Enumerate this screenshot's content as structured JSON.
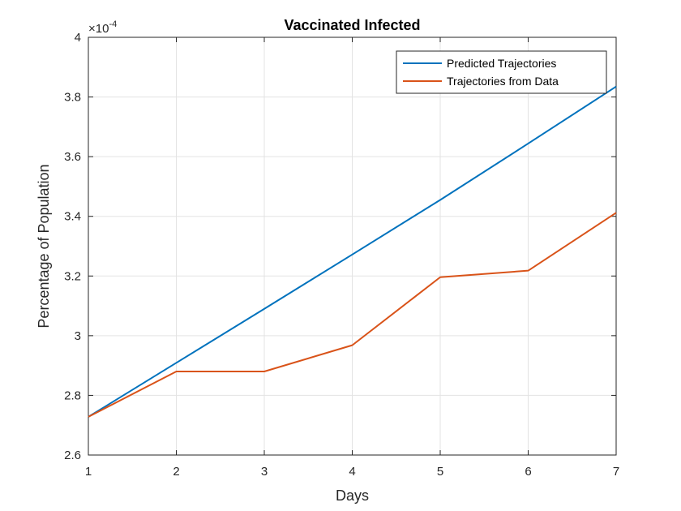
{
  "chart_data": {
    "type": "line",
    "title": "Vaccinated Infected",
    "xlabel": "Days",
    "ylabel": "Percentage of Population",
    "y_exponent_label": "×10",
    "y_exponent": "-4",
    "x": [
      1,
      2,
      3,
      4,
      5,
      6,
      7
    ],
    "xlim": [
      1,
      7
    ],
    "ylim": [
      2.6,
      4.0
    ],
    "x_ticks": [
      "1",
      "2",
      "3",
      "4",
      "5",
      "6",
      "7"
    ],
    "y_ticks": [
      "2.6",
      "2.8",
      "3",
      "3.2",
      "3.4",
      "3.6",
      "3.8",
      "4"
    ],
    "y_tick_values": [
      2.6,
      2.8,
      3.0,
      3.2,
      3.4,
      3.6,
      3.8,
      4.0
    ],
    "grid": true,
    "legend_position": "top-right",
    "series": [
      {
        "name": "Predicted Trajectories",
        "color": "#0072BD",
        "values": [
          2.728,
          2.909,
          3.09,
          3.272,
          3.455,
          3.644,
          3.835
        ]
      },
      {
        "name": "Trajectories from Data",
        "color": "#D95319",
        "values": [
          2.728,
          2.88,
          2.88,
          2.968,
          3.196,
          3.218,
          3.412
        ]
      }
    ]
  }
}
